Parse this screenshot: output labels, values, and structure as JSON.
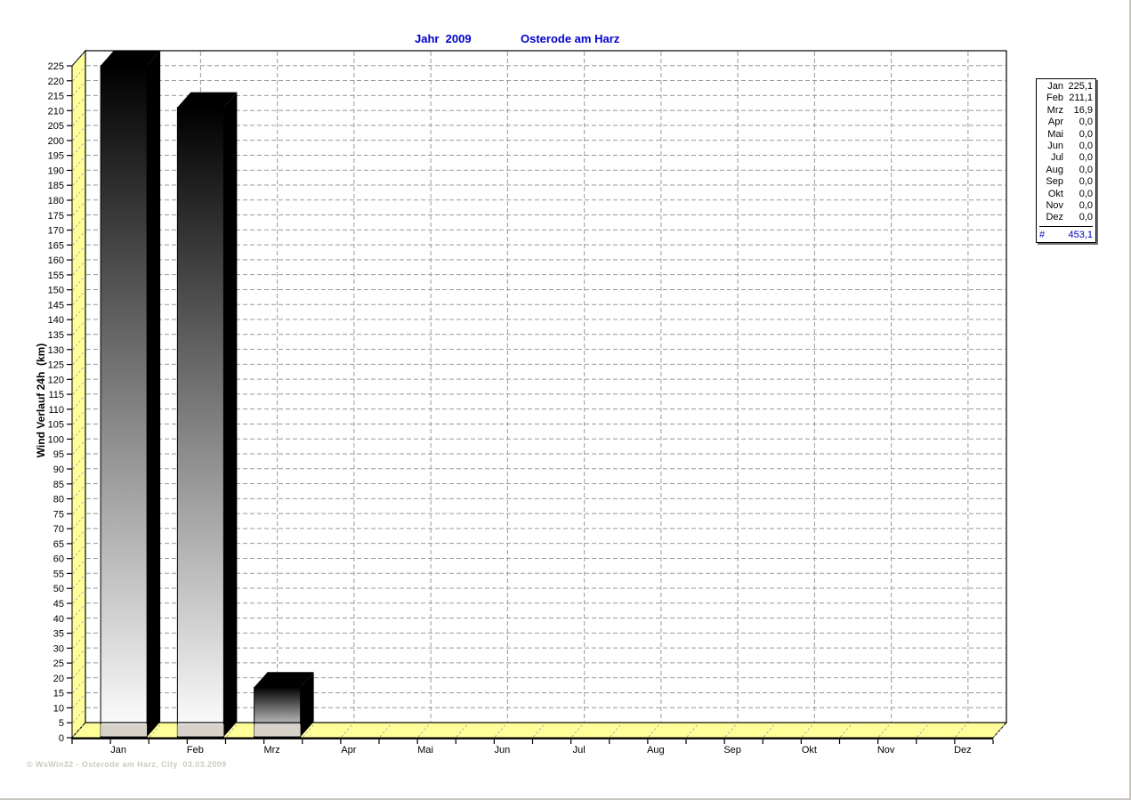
{
  "window": {
    "app": "WsWin32 weather chart"
  },
  "header": {
    "title_year": "Jahr  2009",
    "title_location": "Osterode am Harz"
  },
  "y_axis": {
    "label": "Wind Verlauf 24h  (km)",
    "max": 225,
    "step": 5
  },
  "x_axis": {
    "months": [
      "Jan",
      "Feb",
      "Mrz",
      "Apr",
      "Mai",
      "Jun",
      "Jul",
      "Aug",
      "Sep",
      "Okt",
      "Nov",
      "Dez"
    ]
  },
  "chart_data": {
    "type": "bar",
    "title": "Jahr 2009",
    "subtitle": "Osterode am Harz",
    "categories": [
      "Jan",
      "Feb",
      "Mrz",
      "Apr",
      "Mai",
      "Jun",
      "Jul",
      "Aug",
      "Sep",
      "Okt",
      "Nov",
      "Dez"
    ],
    "values": [
      225.1,
      211.1,
      16.9,
      0.0,
      0.0,
      0.0,
      0.0,
      0.0,
      0.0,
      0.0,
      0.0,
      0.0
    ],
    "total": 453.1,
    "xlabel": "",
    "ylabel": "Wind Verlauf 24h (km)",
    "ylim": [
      0,
      225
    ],
    "ytick_step": 5,
    "grid": true,
    "legend_position": "right",
    "style": "3d-bars, gradient black to white, yellow wall and floor"
  },
  "legend": {
    "rows": [
      {
        "label": "Jan",
        "value": "225,1"
      },
      {
        "label": "Feb",
        "value": "211,1"
      },
      {
        "label": "Mrz",
        "value": "16,9"
      },
      {
        "label": "Apr",
        "value": "0,0"
      },
      {
        "label": "Mai",
        "value": "0,0"
      },
      {
        "label": "Jun",
        "value": "0,0"
      },
      {
        "label": "Jul",
        "value": "0,0"
      },
      {
        "label": "Aug",
        "value": "0,0"
      },
      {
        "label": "Sep",
        "value": "0,0"
      },
      {
        "label": "Okt",
        "value": "0,0"
      },
      {
        "label": "Nov",
        "value": "0,0"
      },
      {
        "label": "Dez",
        "value": "0,0"
      }
    ],
    "total_label": "#",
    "total_value": "453,1"
  },
  "footer": {
    "watermark": "© WsWin32 - Osterode am Harz, City  03.03.2009"
  },
  "colors": {
    "title_blue": "#0000cc",
    "wall_yellow": "#ffff99",
    "grid_gray": "#999999",
    "hatch_gray": "#aaaaaa",
    "bar_top": "#000000",
    "bar_bottom": "#ffffff",
    "bar_side": "#000000",
    "floor_shadow_band": "#d6d2ca",
    "legend_total_blue": "#0000bb",
    "watermark_gray": "#cdc9bf",
    "frame_black": "#000000"
  }
}
